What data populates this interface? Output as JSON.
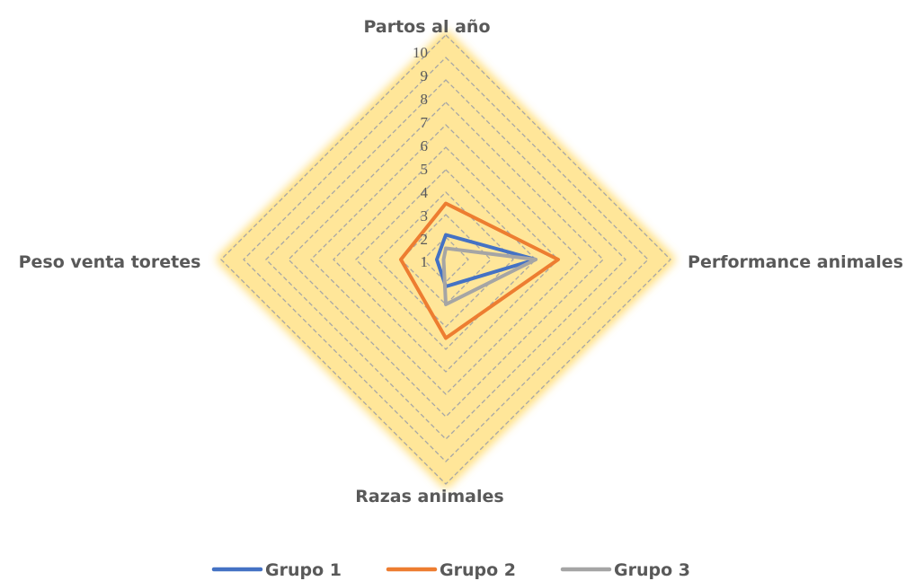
{
  "chart_data": {
    "type": "radar",
    "axes": [
      "Partos al año",
      "Performance animales",
      "Razas animales",
      "Peso venta toretes"
    ],
    "r_ticks": [
      "1",
      "2",
      "3",
      "4",
      "5",
      "6",
      "7",
      "8",
      "9",
      "10"
    ],
    "rlim": [
      0,
      10
    ],
    "grid": true,
    "legend_position": "bottom",
    "series": [
      {
        "name": "Grupo 1",
        "color": "#4472C4",
        "values": [
          1.1,
          4.0,
          1.2,
          0.4
        ]
      },
      {
        "name": "Grupo 2",
        "color": "#ED7D31",
        "values": [
          2.5,
          5.0,
          3.5,
          2.0
        ]
      },
      {
        "name": "Grupo 3",
        "color": "#A5A5A5",
        "values": [
          0.5,
          4.0,
          2.0,
          0.1
        ]
      }
    ],
    "area_fill_color": "#FFE699",
    "area_glow_color": "#FFD966",
    "grid_color": "#A6A6A6"
  }
}
